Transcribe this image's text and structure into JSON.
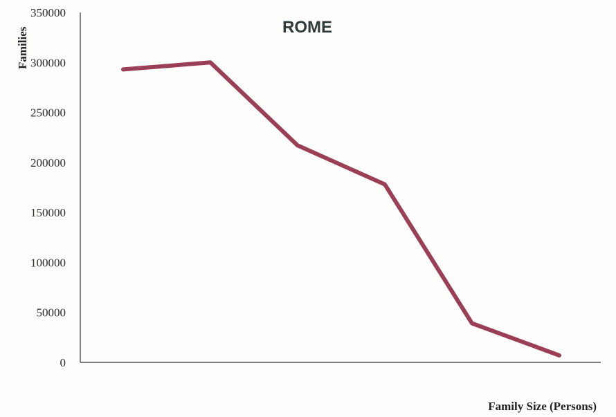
{
  "chart_data": {
    "type": "line",
    "title": "ROME",
    "xlabel": "Family Size (Persons)",
    "ylabel": "Families",
    "ylim": [
      0,
      350000
    ],
    "yticks": [
      0,
      50000,
      100000,
      150000,
      200000,
      250000,
      300000,
      350000
    ],
    "x": [
      1,
      2,
      3,
      4,
      5,
      6
    ],
    "series": [
      {
        "values": [
          293000,
          300000,
          217000,
          178000,
          39000,
          7000
        ]
      }
    ],
    "grid": false,
    "line_color": "#9b3f57"
  }
}
